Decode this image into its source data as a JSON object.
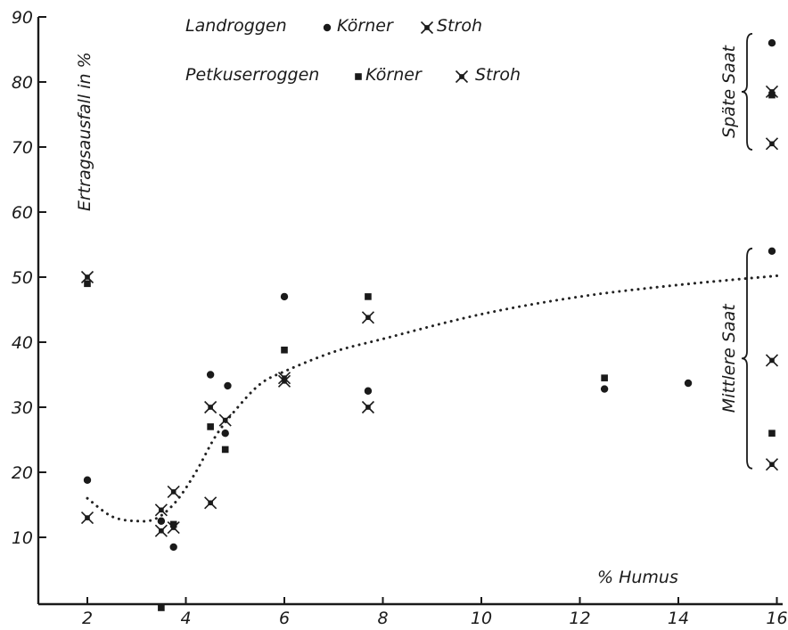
{
  "chart_data": {
    "type": "scatter",
    "title": "",
    "xlabel": "% Humus",
    "ylabel": "Ertragsausfall in %",
    "xlim": [
      1,
      16.3
    ],
    "ylim": [
      0,
      90
    ],
    "xticks": [
      2,
      4,
      6,
      8,
      10,
      12,
      14,
      16
    ],
    "yticks": [
      10,
      20,
      30,
      40,
      50,
      60,
      70,
      80,
      90
    ],
    "grid": false,
    "legend": {
      "position": "top",
      "groups": [
        {
          "name": "Landroggen",
          "entries": [
            {
              "label": "Körner",
              "marker": "circle"
            },
            {
              "label": "Stroh",
              "marker": "star"
            }
          ]
        },
        {
          "name": "Petkuserroggen",
          "entries": [
            {
              "label": "Körner",
              "marker": "square"
            },
            {
              "label": "Stroh",
              "marker": "star"
            }
          ]
        }
      ]
    },
    "series": [
      {
        "group": "Landroggen",
        "kind": "Körner",
        "marker": "circle",
        "points": [
          [
            2,
            18.8
          ],
          [
            3.5,
            12.5
          ],
          [
            3.75,
            8.5
          ],
          [
            4.5,
            35
          ],
          [
            4.85,
            33.3
          ],
          [
            4.8,
            26
          ],
          [
            6,
            47
          ],
          [
            7.7,
            32.5
          ],
          [
            12.5,
            32.8
          ],
          [
            14.2,
            33.7
          ],
          [
            15.9,
            86
          ],
          [
            15.9,
            54
          ]
        ]
      },
      {
        "group": "Landroggen",
        "kind": "Stroh",
        "marker": "star",
        "points": [
          [
            2,
            13
          ],
          [
            3.5,
            14.2
          ],
          [
            3.75,
            17
          ],
          [
            4.5,
            30
          ],
          [
            4.8,
            28
          ],
          [
            6,
            34.5
          ],
          [
            7.7,
            30
          ],
          [
            15.9,
            78.5
          ],
          [
            15.9,
            37.2
          ]
        ]
      },
      {
        "group": "Petkuserroggen",
        "kind": "Körner",
        "marker": "square",
        "points": [
          [
            2,
            49
          ],
          [
            3.5,
            -1
          ],
          [
            3.75,
            12
          ],
          [
            4.5,
            27
          ],
          [
            4.8,
            23.5
          ],
          [
            6,
            38.8
          ],
          [
            7.7,
            47
          ],
          [
            12.5,
            34.5
          ],
          [
            15.9,
            78
          ],
          [
            15.9,
            26
          ]
        ]
      },
      {
        "group": "Petkuserroggen",
        "kind": "Stroh",
        "marker": "star",
        "points": [
          [
            2,
            50
          ],
          [
            3.5,
            11
          ],
          [
            3.75,
            11.5
          ],
          [
            4.5,
            15.3
          ],
          [
            6,
            34
          ],
          [
            7.7,
            43.8
          ],
          [
            15.9,
            70.5
          ],
          [
            15.9,
            21.2
          ]
        ]
      }
    ],
    "fit_curve": {
      "style": "dotted",
      "points": [
        [
          2,
          16
        ],
        [
          2.5,
          13.2
        ],
        [
          3,
          12.5
        ],
        [
          3.4,
          12.9
        ],
        [
          3.8,
          15.5
        ],
        [
          4.2,
          20
        ],
        [
          4.6,
          25.5
        ],
        [
          5,
          29.5
        ],
        [
          5.5,
          33.5
        ],
        [
          6,
          35.5
        ],
        [
          7,
          38.5
        ],
        [
          8,
          40.5
        ],
        [
          10,
          44.3
        ],
        [
          12,
          47
        ],
        [
          14,
          48.8
        ],
        [
          16,
          50.2
        ]
      ]
    },
    "annotations": [
      {
        "text": "Späte Saat",
        "y_range": [
          70,
          87
        ]
      },
      {
        "text": "Mittlere Saat",
        "y_range": [
          21,
          54
        ]
      }
    ]
  }
}
